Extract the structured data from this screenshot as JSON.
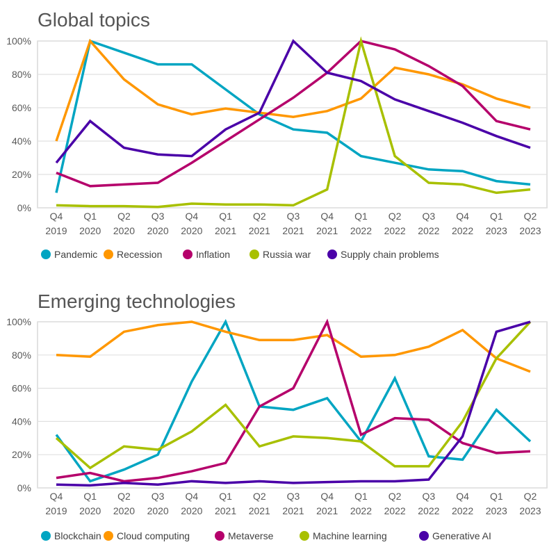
{
  "chart_data": [
    {
      "type": "line",
      "title": "Global topics",
      "ylim": [
        0,
        100
      ],
      "y_ticks": [
        "0%",
        "20%",
        "40%",
        "60%",
        "80%",
        "100%"
      ],
      "grid": true,
      "legend": "bottom",
      "categories": [
        [
          "Q4",
          "2019"
        ],
        [
          "Q1",
          "2020"
        ],
        [
          "Q2",
          "2020"
        ],
        [
          "Q3",
          "2020"
        ],
        [
          "Q4",
          "2020"
        ],
        [
          "Q1",
          "2021"
        ],
        [
          "Q2",
          "2021"
        ],
        [
          "Q3",
          "2021"
        ],
        [
          "Q4",
          "2021"
        ],
        [
          "Q1",
          "2022"
        ],
        [
          "Q2",
          "2022"
        ],
        [
          "Q3",
          "2022"
        ],
        [
          "Q4",
          "2022"
        ],
        [
          "Q1",
          "2023"
        ],
        [
          "Q2",
          "2023"
        ]
      ],
      "series": [
        {
          "name": "Pandemic",
          "color": "#00a5c2",
          "values": [
            9,
            100,
            93,
            86,
            86,
            71,
            56,
            47,
            45,
            31,
            27,
            23,
            22,
            16,
            14
          ]
        },
        {
          "name": "Recession",
          "color": "#ff9700",
          "values": [
            40,
            100,
            77,
            62,
            56,
            59.5,
            57,
            54.5,
            58,
            65.5,
            84,
            80,
            74,
            65.5,
            60
          ]
        },
        {
          "name": "Inflation",
          "color": "#b5006b",
          "values": [
            21,
            13,
            14,
            15,
            27,
            40,
            53,
            66,
            81,
            100,
            95,
            85,
            73,
            52,
            47
          ]
        },
        {
          "name": "Russia war",
          "color": "#a8c000",
          "values": [
            1.5,
            1,
            1,
            0.5,
            2.5,
            2,
            2,
            1.5,
            11,
            100,
            31,
            15,
            14,
            9,
            11
          ]
        },
        {
          "name": "Supply chain problems",
          "color": "#4a00a8",
          "values": [
            27,
            52,
            36,
            32,
            31,
            47,
            57,
            100,
            81,
            76,
            65,
            58,
            51,
            43,
            36
          ]
        }
      ]
    },
    {
      "type": "line",
      "title": "Emerging technologies",
      "ylim": [
        0,
        100
      ],
      "y_ticks": [
        "0%",
        "20%",
        "40%",
        "60%",
        "80%",
        "100%"
      ],
      "grid": true,
      "legend": "bottom",
      "categories": [
        [
          "Q4",
          "2019"
        ],
        [
          "Q1",
          "2020"
        ],
        [
          "Q2",
          "2020"
        ],
        [
          "Q3",
          "2020"
        ],
        [
          "Q4",
          "2020"
        ],
        [
          "Q1",
          "2021"
        ],
        [
          "Q2",
          "2021"
        ],
        [
          "Q3",
          "2021"
        ],
        [
          "Q4",
          "2021"
        ],
        [
          "Q1",
          "2022"
        ],
        [
          "Q2",
          "2022"
        ],
        [
          "Q3",
          "2022"
        ],
        [
          "Q4",
          "2022"
        ],
        [
          "Q1",
          "2023"
        ],
        [
          "Q2",
          "2023"
        ]
      ],
      "series": [
        {
          "name": "Blockchain",
          "color": "#00a5c2",
          "values": [
            32,
            4,
            11,
            20,
            64,
            100,
            49,
            47,
            54,
            28,
            66,
            19,
            17,
            47,
            28
          ]
        },
        {
          "name": "Cloud computing",
          "color": "#ff9700",
          "values": [
            80,
            79,
            94,
            98,
            100,
            94,
            89,
            89,
            92,
            79,
            80,
            85,
            95,
            78,
            70
          ]
        },
        {
          "name": "Metaverse",
          "color": "#b5006b",
          "values": [
            6,
            9,
            4,
            6,
            10,
            15,
            49,
            60,
            100,
            32,
            42,
            41,
            27,
            21,
            22
          ]
        },
        {
          "name": "Machine learning",
          "color": "#a8c000",
          "values": [
            30,
            12,
            25,
            23,
            34,
            50,
            25,
            31,
            30,
            28,
            13,
            13,
            40,
            78,
            100
          ]
        },
        {
          "name": "Generative AI",
          "color": "#4a00a8",
          "values": [
            2,
            1.5,
            3,
            2,
            4,
            3,
            4,
            3,
            3.5,
            4,
            4,
            5,
            31,
            94,
            100
          ]
        }
      ]
    }
  ]
}
